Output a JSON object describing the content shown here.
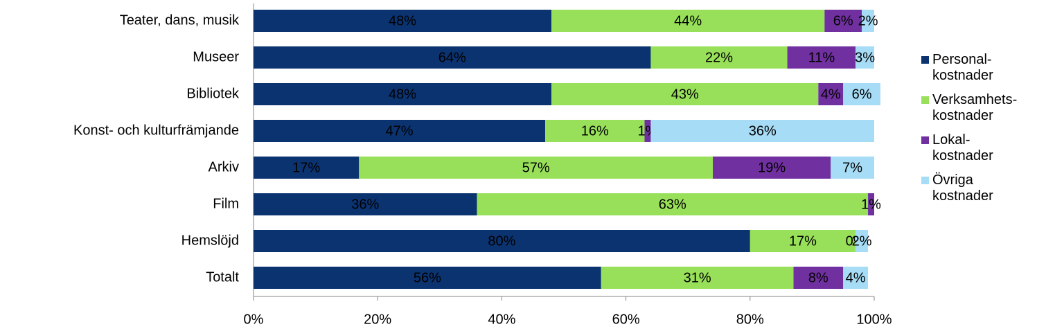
{
  "chart_data": {
    "type": "stacked-bar-horizontal",
    "categories": [
      "Teater, dans, musik",
      "Museer",
      "Bibliotek",
      "Konst- och kulturfrämjande",
      "Arkiv",
      "Film",
      "Hemslöjd",
      "Totalt"
    ],
    "series": [
      {
        "name": "Personal-\nkostnader",
        "color": "#0b3370",
        "label_color": "#ffffff",
        "values": [
          48,
          64,
          48,
          47,
          17,
          36,
          80,
          56
        ],
        "value_labels": [
          "48%",
          "64%",
          "48%",
          "47%",
          "17%",
          "36%",
          "80%",
          "56%"
        ]
      },
      {
        "name": "Verksamhets-\nkostnader",
        "color": "#99e05a",
        "label_color": "#000000",
        "values": [
          44,
          22,
          43,
          16,
          57,
          63,
          17,
          31
        ],
        "value_labels": [
          "44%",
          "22%",
          "43%",
          "16%",
          "57%",
          "63%",
          "17%",
          "31%"
        ]
      },
      {
        "name": "Lokal-\nkostnader",
        "color": "#7030a0",
        "label_color": "#ffffff",
        "values": [
          6,
          11,
          4,
          1,
          19,
          1,
          0,
          8
        ],
        "value_labels": [
          "6%",
          "11%",
          "4%",
          "1%",
          "19%",
          "1%",
          "0%",
          "8%"
        ]
      },
      {
        "name": "Övriga\nkostnader",
        "color": "#a6dcf5",
        "label_color": "#000000",
        "values": [
          2,
          3,
          6,
          36,
          7,
          0,
          2,
          4
        ],
        "value_labels": [
          "2%",
          "3%",
          "6%",
          "36%",
          "7%",
          null,
          "2%",
          "4%"
        ]
      }
    ],
    "xlim": [
      0,
      100
    ],
    "xticks": [
      {
        "value": 0,
        "label": "0%"
      },
      {
        "value": 20,
        "label": "20%"
      },
      {
        "value": 40,
        "label": "40%"
      },
      {
        "value": 60,
        "label": "60%"
      },
      {
        "value": 80,
        "label": "80%"
      },
      {
        "value": 100,
        "label": "100%"
      }
    ],
    "legend": "right",
    "grid": false
  }
}
